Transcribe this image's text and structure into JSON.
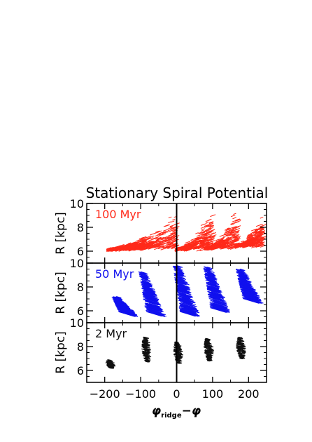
{
  "chart_data": {
    "type": "scatter",
    "title": "Stationary Spiral Potential",
    "xlabel_main": "φ",
    "xlabel_sub": "ridge",
    "xlabel_tail": "−φ",
    "xlim": [
      -250,
      250
    ],
    "xticks": [
      -200,
      -100,
      0,
      100,
      200
    ],
    "xtick_labels": [
      "−200",
      "−100",
      "0",
      "100",
      "200"
    ],
    "vline_x": 0,
    "panels": [
      {
        "label": "100 Myr",
        "color": "#ff2a1a",
        "ylabel": "R [kpc]",
        "ylim": [
          5,
          10
        ],
        "yticks": [
          6,
          8,
          10
        ],
        "ytick_labels": [
          "6",
          "8",
          "10"
        ],
        "kind": "trailing-arcs",
        "features": [
          {
            "x_start": -195,
            "x_end": -95,
            "r_start": 6.1,
            "r_end": 7.4
          },
          {
            "x_start": -150,
            "x_end": -5,
            "r_start": 6.2,
            "r_end": 9.4
          },
          {
            "x_start": -5,
            "x_end": 95,
            "r_start": 6.1,
            "r_end": 9.7
          },
          {
            "x_start": 75,
            "x_end": 165,
            "r_start": 6.2,
            "r_end": 9.6
          },
          {
            "x_start": 160,
            "x_end": 235,
            "r_start": 6.4,
            "r_end": 9.4
          }
        ]
      },
      {
        "label": "50 Myr",
        "color": "#1010ee",
        "ylabel": "R [kpc]",
        "ylim": [
          5,
          10
        ],
        "yticks": [
          6,
          8,
          10
        ],
        "ytick_labels": [
          "6",
          "8",
          "10"
        ],
        "kind": "tilted-streaks",
        "features": [
          {
            "x": -160,
            "r_min": 5.9,
            "r_max": 7.2
          },
          {
            "x": -85,
            "r_min": 5.9,
            "r_max": 9.3
          },
          {
            "x": 10,
            "r_min": 5.9,
            "r_max": 9.8
          },
          {
            "x": 95,
            "r_min": 6.2,
            "r_max": 9.7
          },
          {
            "x": 185,
            "r_min": 7.0,
            "r_max": 9.5
          }
        ]
      },
      {
        "label": "2 Myr",
        "color": "#111111",
        "ylabel": "R [kpc]",
        "ylim": [
          5,
          10
        ],
        "yticks": [
          6,
          8,
          10
        ],
        "ytick_labels": [
          "6",
          "8",
          "10"
        ],
        "kind": "clumps",
        "features": [
          {
            "x": -188,
            "r_min": 6.2,
            "r_max": 6.9
          },
          {
            "x": -88,
            "r_min": 6.7,
            "r_max": 8.8
          },
          {
            "x": 0,
            "r_min": 6.6,
            "r_max": 8.4
          },
          {
            "x": 85,
            "r_min": 6.8,
            "r_max": 8.7
          },
          {
            "x": 175,
            "r_min": 7.0,
            "r_max": 8.8
          }
        ]
      }
    ]
  }
}
